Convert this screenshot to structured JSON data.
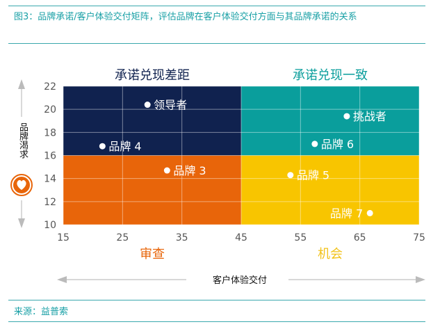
{
  "title": "图3：品牌承诺/客户体验交付矩阵，评估品牌在客户体验交付方面与其品牌承诺的关系",
  "source": "来源：益普索",
  "chart_data": {
    "type": "scatter",
    "xlabel": "客户体验交付",
    "ylabel": "品牌渴求",
    "xlim": [
      15,
      75
    ],
    "ylim": [
      10,
      22
    ],
    "xticks": [
      15,
      25,
      35,
      45,
      55,
      65,
      75
    ],
    "yticks": [
      10,
      12,
      14,
      16,
      18,
      20,
      22
    ],
    "grid": true,
    "quadrants": [
      {
        "label": "承诺兑现差距",
        "x": [
          15,
          45
        ],
        "y": [
          16,
          22
        ],
        "color": "#10224f",
        "label_color": "#10224f",
        "label_pos": "top"
      },
      {
        "label": "承诺兑现一致",
        "x": [
          45,
          75
        ],
        "y": [
          16,
          22
        ],
        "color": "#0a9e9c",
        "label_color": "#0a9e9c",
        "label_pos": "top"
      },
      {
        "label": "审查",
        "x": [
          15,
          45
        ],
        "y": [
          10,
          16
        ],
        "color": "#e8650a",
        "label_color": "#e8650a",
        "label_pos": "bottom"
      },
      {
        "label": "机会",
        "x": [
          45,
          75
        ],
        "y": [
          10,
          16
        ],
        "color": "#f8c500",
        "label_color": "#f2c21a",
        "label_pos": "bottom"
      }
    ],
    "points": [
      {
        "label": "领导者",
        "x": 29.2,
        "y": 20.4
      },
      {
        "label": "品牌 4",
        "x": 21.6,
        "y": 16.8
      },
      {
        "label": "品牌 3",
        "x": 32.5,
        "y": 14.7
      },
      {
        "label": "挑战者",
        "x": 62.8,
        "y": 19.4
      },
      {
        "label": "品牌 6",
        "x": 57.4,
        "y": 17.0
      },
      {
        "label": "品牌 5",
        "x": 53.3,
        "y": 14.3
      },
      {
        "label": "品牌 7",
        "x": 66.7,
        "y": 11.0,
        "label_side": "left"
      }
    ]
  }
}
